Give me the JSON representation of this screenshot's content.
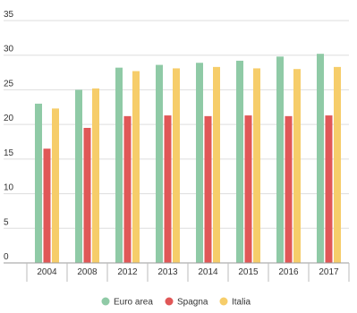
{
  "chart_data": {
    "type": "bar",
    "categories": [
      "2004",
      "2008",
      "2012",
      "2013",
      "2014",
      "2015",
      "2016",
      "2017"
    ],
    "series": [
      {
        "name": "Euro area",
        "color": "#8fcaa6",
        "values": [
          23.0,
          25.0,
          28.2,
          28.6,
          28.9,
          29.2,
          29.8,
          30.2
        ]
      },
      {
        "name": "Spagna",
        "color": "#e05757",
        "values": [
          16.5,
          19.5,
          21.2,
          21.3,
          21.2,
          21.3,
          21.2,
          21.3
        ]
      },
      {
        "name": "Italia",
        "color": "#f6cd6a",
        "values": [
          22.3,
          25.2,
          27.7,
          28.1,
          28.3,
          28.1,
          28.0,
          28.3
        ]
      }
    ],
    "yticks": [
      "0",
      "5",
      "10",
      "15",
      "20",
      "25",
      "30",
      "35"
    ],
    "ylim": [
      0,
      35
    ],
    "grid": true,
    "legend_position": "bottom"
  }
}
